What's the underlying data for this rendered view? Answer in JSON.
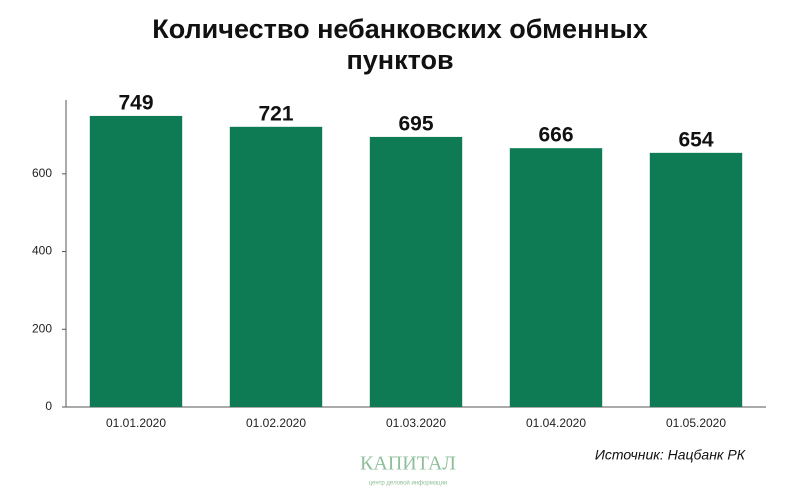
{
  "chart_data": {
    "type": "bar",
    "title": "Количество небанковских обменных пунктов",
    "categories": [
      "01.01.2020",
      "01.02.2020",
      "01.03.2020",
      "01.04.2020",
      "01.05.2020"
    ],
    "values": [
      749,
      721,
      695,
      666,
      654
    ],
    "color": "#0e7b55",
    "ylim": [
      0,
      790
    ],
    "yticks": [
      0,
      200,
      400,
      600
    ],
    "grid": false,
    "source": "Источник: Нацбанк РК",
    "logo": "КАПИТАЛ",
    "logo_subtitle": "центр деловой информации"
  }
}
